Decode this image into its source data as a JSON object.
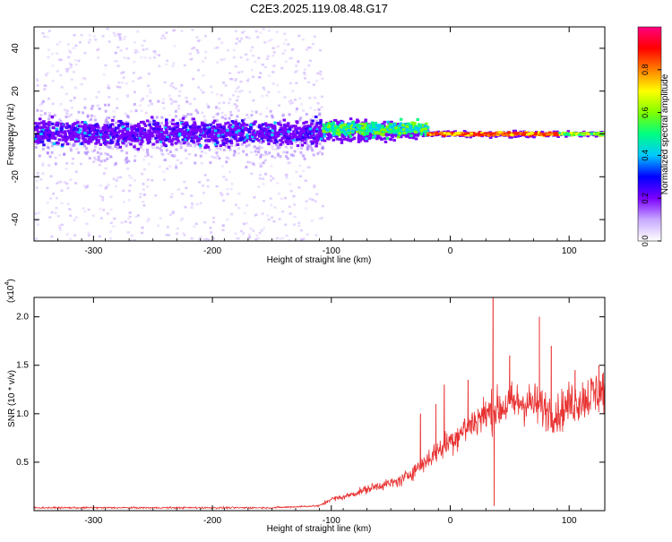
{
  "title": "C2E3.2025.119.08.48.G17",
  "colors": {
    "spectrogram_density": "#9b30ff",
    "snr_line": "#e83030",
    "colorbar_stops": [
      "#ffffff",
      "#c8a8ff",
      "#7a00ff",
      "#0000ff",
      "#00c8ff",
      "#00ff80",
      "#80ff00",
      "#ffff00",
      "#ff8000",
      "#ff0000",
      "#ff0080"
    ]
  },
  "chart_data": [
    {
      "type": "heatmap",
      "name": "spectrogram",
      "xlabel": "Height of straight line (km)",
      "ylabel": "Frequency (Hz)",
      "xlim": [
        -350,
        130
      ],
      "ylim": [
        -50,
        50
      ],
      "xticks": [
        -300,
        -200,
        -100,
        0,
        100
      ],
      "yticks": [
        -40,
        -20,
        0,
        20,
        40
      ],
      "xtick_labels": [
        "-300",
        "-200",
        "-100",
        "0",
        "100"
      ],
      "ytick_labels": [
        "-40",
        "-20",
        "0",
        "20",
        "40"
      ],
      "colorbar": {
        "label": "Normalized spectral amplitude",
        "range": [
          0,
          1
        ],
        "ticks": [
          0.0,
          0.2,
          0.4,
          0.6,
          0.8
        ],
        "tick_labels": [
          "0.0",
          "0.2",
          "0.4",
          "0.6",
          "0.8"
        ]
      },
      "regions": [
        {
          "x": [
            -350,
            -108
          ],
          "freq_band_core": [
            -10,
            10
          ],
          "freq_band_scatter": [
            -50,
            50
          ],
          "amplitude": 0.15
        },
        {
          "x": [
            -108,
            -20
          ],
          "freq_band_core": [
            -6,
            10
          ],
          "amplitude": 0.45
        },
        {
          "x": [
            -20,
            130
          ],
          "freq_band_core": [
            -2,
            3
          ],
          "amplitude": 0.9
        }
      ]
    },
    {
      "type": "line",
      "name": "snr",
      "xlabel": "Height of straight line (km)",
      "ylabel": "SNR (10 * v/v)",
      "y_scale_label": "(x10",
      "y_scale_exp": "4",
      "xlim": [
        -350,
        130
      ],
      "ylim": [
        0,
        2.2
      ],
      "xticks": [
        -300,
        -200,
        -100,
        0,
        100
      ],
      "yticks": [
        0.5,
        1.0,
        1.5,
        2.0
      ],
      "xtick_labels": [
        "-300",
        "-200",
        "-100",
        "0",
        "100"
      ],
      "ytick_labels": [
        "0.5",
        "1.0",
        "1.5",
        "2.0"
      ],
      "series": [
        {
          "x": [
            -350,
            -300,
            -250,
            -200,
            -150,
            -110,
            -100,
            -90,
            -80,
            -70,
            -60,
            -50,
            -40,
            -30,
            -20,
            -10,
            0,
            10,
            20,
            30,
            40,
            50,
            60,
            70,
            80,
            90,
            100,
            110,
            120,
            130
          ],
          "y": [
            0.03,
            0.03,
            0.03,
            0.03,
            0.03,
            0.05,
            0.12,
            0.14,
            0.18,
            0.22,
            0.26,
            0.28,
            0.32,
            0.42,
            0.52,
            0.62,
            0.72,
            0.82,
            0.92,
            1.0,
            1.05,
            1.1,
            1.12,
            1.1,
            1.05,
            1.0,
            1.1,
            1.15,
            1.2,
            1.25
          ],
          "spikes": [
            [
              -25,
              1.0
            ],
            [
              -12,
              1.1
            ],
            [
              -5,
              1.3
            ],
            [
              15,
              1.35
            ],
            [
              36,
              2.2
            ],
            [
              37,
              0.05
            ],
            [
              50,
              1.6
            ],
            [
              75,
              2.0
            ],
            [
              85,
              1.7
            ],
            [
              105,
              1.45
            ],
            [
              125,
              1.5
            ]
          ]
        }
      ]
    }
  ]
}
